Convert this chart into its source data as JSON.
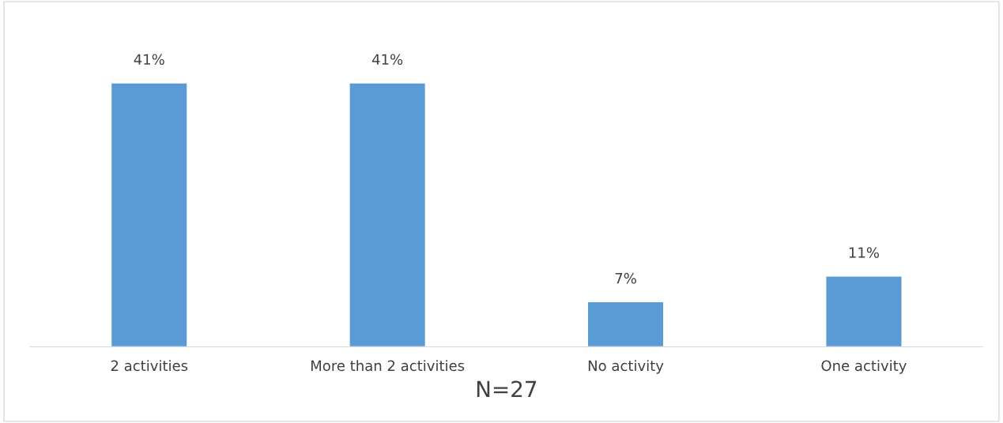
{
  "chart_data": {
    "type": "bar",
    "xlabel": "N=27",
    "categories": [
      "2 activities",
      "More than 2 activities",
      "No activity",
      "One activity"
    ],
    "values": [
      41,
      41,
      7,
      11
    ],
    "value_labels": [
      "41%",
      "41%",
      "7%",
      "11%"
    ],
    "color": "#5b9bd5",
    "grid": false,
    "legend": false
  }
}
